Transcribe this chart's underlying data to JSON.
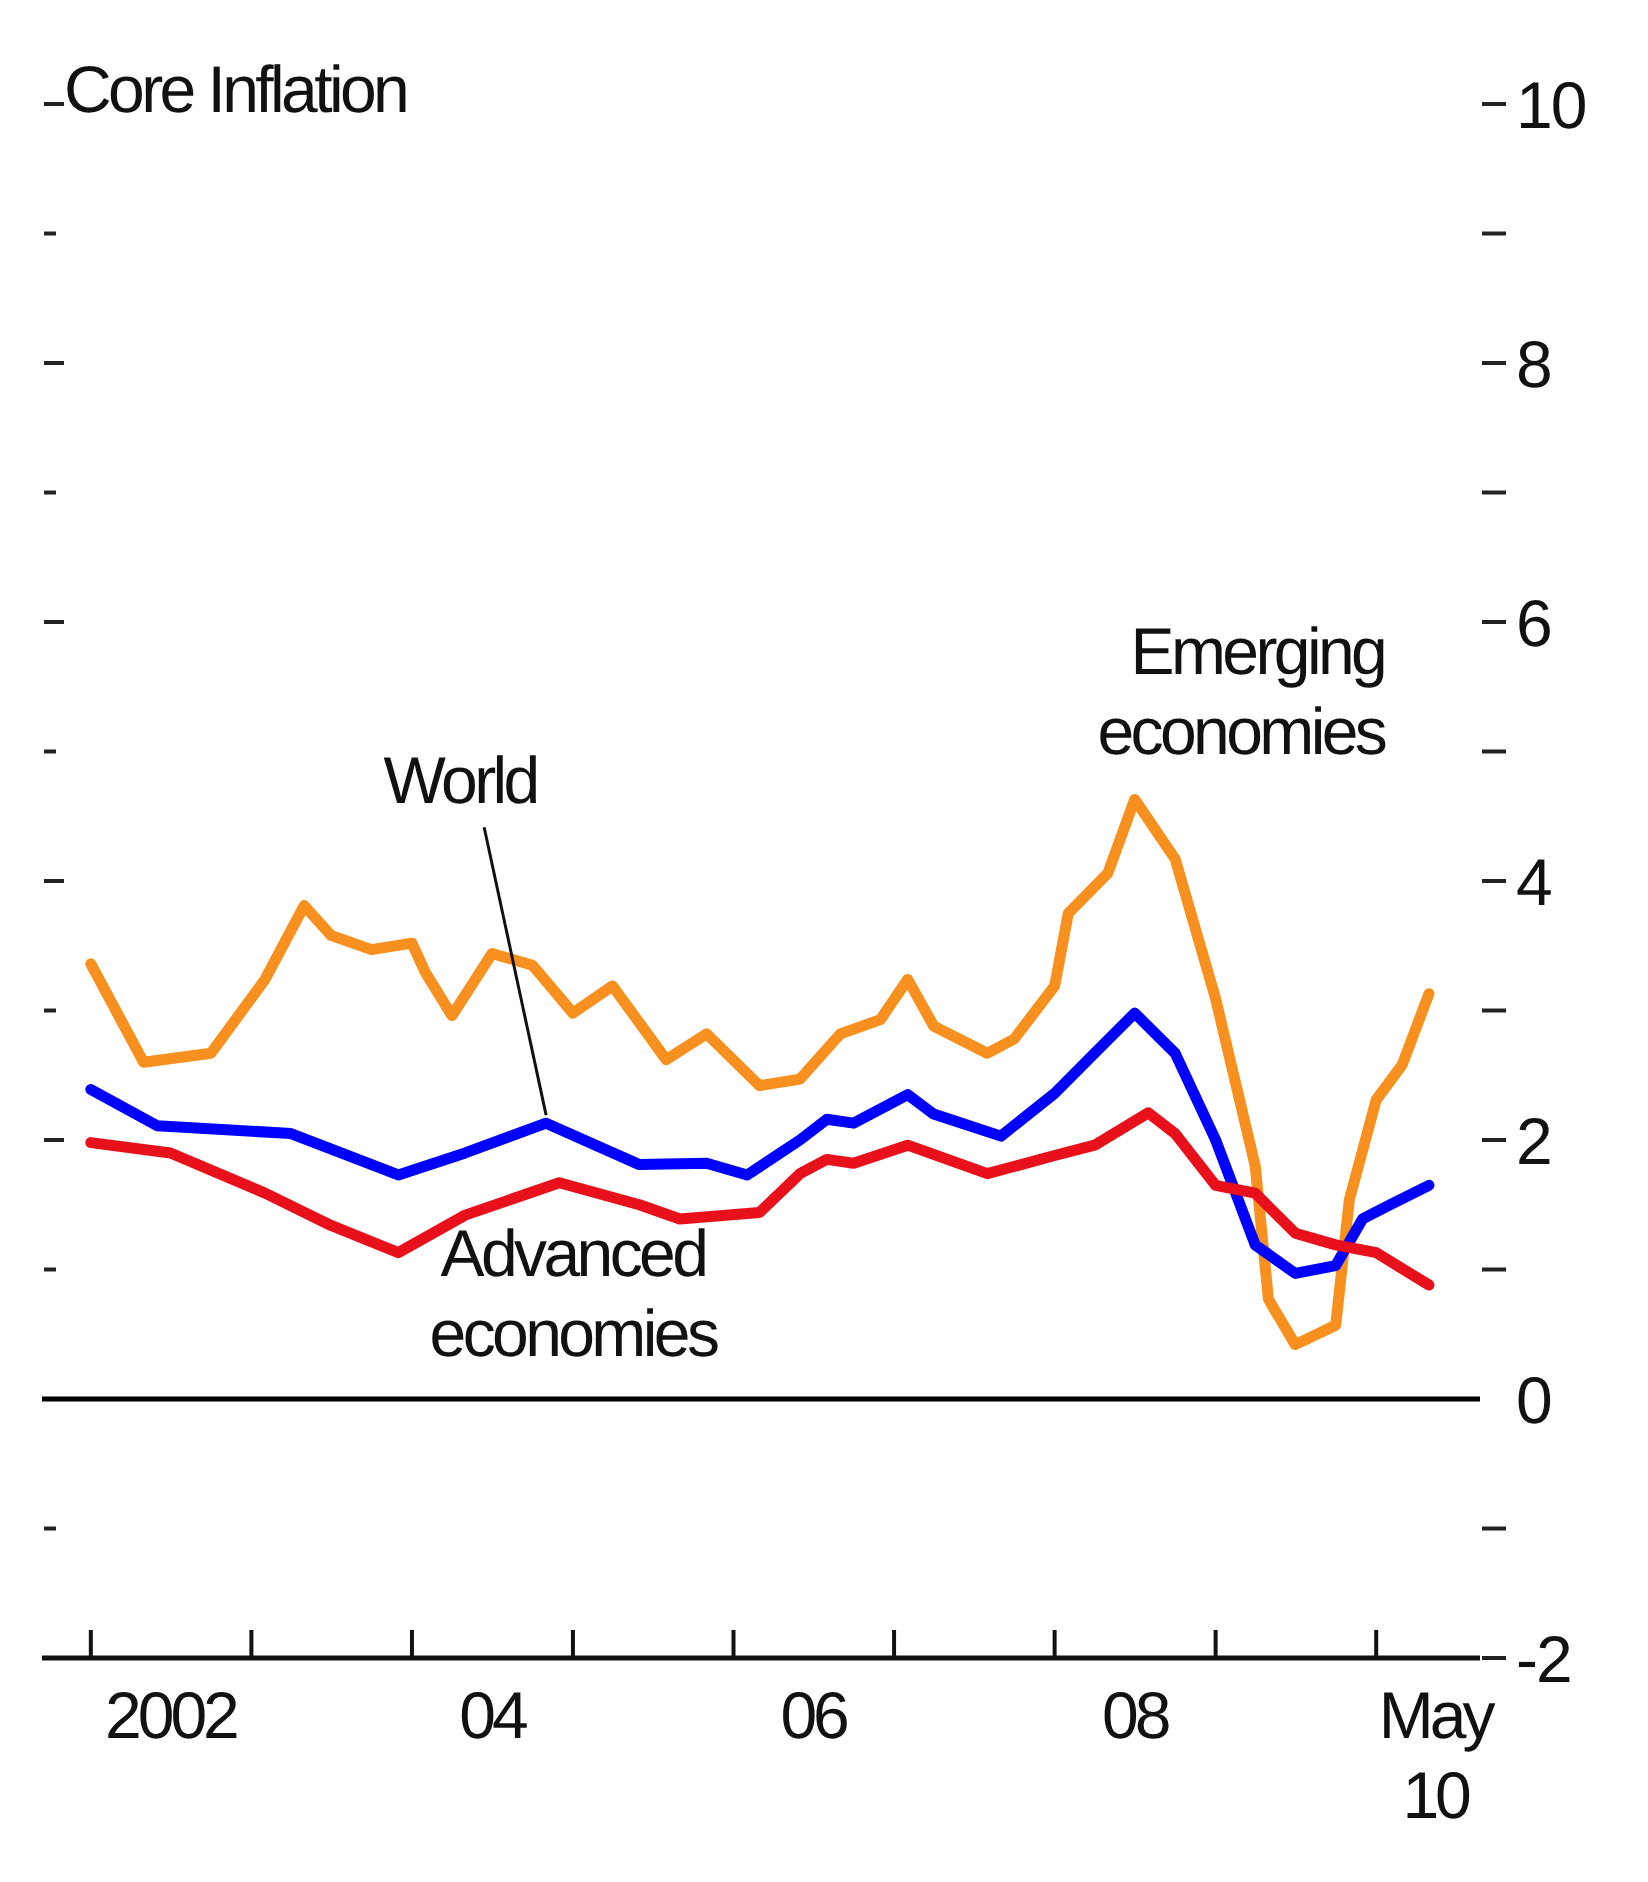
{
  "chart_data": {
    "type": "line",
    "title": "Core Inflation",
    "xlim": [
      "2001-09-12",
      "2010-08-25"
    ],
    "ylim": [
      -2,
      10
    ],
    "xticks": [
      {
        "value": "2002-01-01",
        "label": null
      },
      {
        "value": "2003-01-01",
        "label": null
      },
      {
        "value": "2004-01-01",
        "label": null
      },
      {
        "value": "2005-01-01",
        "label": null
      },
      {
        "value": "2006-01-01",
        "label": null
      },
      {
        "value": "2007-01-01",
        "label": null
      },
      {
        "value": "2008-01-01",
        "label": null
      },
      {
        "value": "2009-01-01",
        "label": null
      },
      {
        "value": "2010-01-01",
        "label": null
      },
      {
        "value": "2002-07-01",
        "label": "2002"
      },
      {
        "value": "2004-07-01",
        "label": "04"
      },
      {
        "value": "2006-07-01",
        "label": "06"
      },
      {
        "value": "2008-07-01",
        "label": "08"
      },
      {
        "value": "2010-05-15",
        "label": "May 10"
      }
    ],
    "yticks": [
      -2,
      {
        "value": -1,
        "label": null
      },
      0,
      {
        "value": 1,
        "label": null
      },
      2,
      {
        "value": 3,
        "label": null
      },
      4,
      {
        "value": 5,
        "label": null
      },
      6,
      {
        "value": 7,
        "label": null
      },
      8,
      {
        "value": 9,
        "label": null
      },
      10
    ],
    "grid": false,
    "line_style": "solid",
    "marker": "none",
    "ref_lines": [
      {
        "axis": "y",
        "value": 0,
        "color": "#000000"
      }
    ],
    "series": [
      {
        "name": "Emerging economies",
        "color": "#f7901e",
        "x": [
          "2002-01",
          "2002-05",
          "2002-10",
          "2003-02",
          "2003-05",
          "2003-07",
          "2003-10",
          "2004-01",
          "2004-02",
          "2004-04",
          "2004-07",
          "2004-10",
          "2005-01",
          "2005-04",
          "2005-08",
          "2005-11",
          "2006-03",
          "2006-06",
          "2006-09",
          "2006-12",
          "2007-02",
          "2007-04",
          "2007-08",
          "2007-10",
          "2008-01",
          "2008-02",
          "2008-05",
          "2008-07",
          "2008-10",
          "2009-01",
          "2009-04",
          "2009-05",
          "2009-07",
          "2009-10",
          "2009-11",
          "2010-01",
          "2010-03",
          "2010-05"
        ],
        "values": [
          3.36,
          2.6,
          2.67,
          3.24,
          3.81,
          3.58,
          3.47,
          3.52,
          3.29,
          2.96,
          3.44,
          3.35,
          2.98,
          3.19,
          2.62,
          2.82,
          2.42,
          2.47,
          2.82,
          2.93,
          3.24,
          2.88,
          2.67,
          2.78,
          3.19,
          3.75,
          4.06,
          4.63,
          4.17,
          3.09,
          1.8,
          0.77,
          0.42,
          0.57,
          1.54,
          2.31,
          2.58,
          3.13
        ]
      },
      {
        "name": "World",
        "color": "#0000ff",
        "x": [
          "2002-01",
          "2002-06",
          "2003-04",
          "2003-12",
          "2004-05",
          "2004-11",
          "2005-06",
          "2005-11",
          "2006-02",
          "2006-06",
          "2006-08",
          "2006-10",
          "2007-02",
          "2007-04",
          "2007-09",
          "2008-01",
          "2008-04",
          "2008-07",
          "2008-10",
          "2009-01",
          "2009-04",
          "2009-07",
          "2009-10",
          "2009-12",
          "2010-02",
          "2010-05"
        ],
        "values": [
          2.39,
          2.11,
          2.05,
          1.73,
          1.9,
          2.13,
          1.81,
          1.82,
          1.73,
          2.0,
          2.16,
          2.13,
          2.35,
          2.2,
          2.03,
          2.36,
          2.67,
          2.98,
          2.67,
          2.0,
          1.19,
          0.97,
          1.03,
          1.39,
          1.5,
          1.65
        ]
      },
      {
        "name": "Advanced economies",
        "color": "#e8101a",
        "x": [
          "2002-01",
          "2002-07",
          "2003-02",
          "2003-07",
          "2003-12",
          "2004-05",
          "2004-12",
          "2005-06",
          "2005-09",
          "2006-03",
          "2006-06",
          "2006-08",
          "2006-10",
          "2007-02",
          "2007-08",
          "2008-01",
          "2008-04",
          "2008-08",
          "2008-10",
          "2009-01",
          "2009-04",
          "2009-07",
          "2009-10",
          "2010-01",
          "2010-05"
        ],
        "values": [
          1.98,
          1.9,
          1.59,
          1.34,
          1.13,
          1.42,
          1.67,
          1.5,
          1.39,
          1.44,
          1.74,
          1.85,
          1.82,
          1.96,
          1.74,
          1.88,
          1.96,
          2.21,
          2.05,
          1.65,
          1.59,
          1.28,
          1.19,
          1.13,
          0.88
        ]
      }
    ]
  }
}
